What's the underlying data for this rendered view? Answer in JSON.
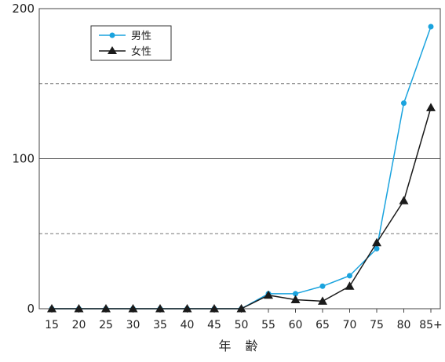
{
  "chart_data": {
    "type": "line",
    "title": "",
    "xlabel": "年　齢",
    "ylabel": "",
    "categories": [
      "15",
      "20",
      "25",
      "30",
      "35",
      "40",
      "45",
      "50",
      "55",
      "60",
      "65",
      "70",
      "75",
      "80",
      "85+"
    ],
    "ylim": [
      0,
      200
    ],
    "yticks": [
      "0",
      "100",
      "200"
    ],
    "gridlines": {
      "solid": [
        100
      ],
      "dashed": [
        50,
        150
      ]
    },
    "legend": {
      "placement": "top-left"
    },
    "series": [
      {
        "name": "男性",
        "marker": "circle",
        "color": "#1aa3de",
        "values": [
          0,
          0,
          0,
          0,
          0,
          0,
          0,
          0,
          10,
          10,
          15,
          22,
          40,
          137,
          188
        ]
      },
      {
        "name": "女性",
        "marker": "triangle",
        "color": "#1a1a1a",
        "values": [
          0,
          0,
          0,
          0,
          0,
          0,
          0,
          0,
          9,
          6,
          5,
          15,
          44,
          72,
          134
        ]
      }
    ]
  }
}
